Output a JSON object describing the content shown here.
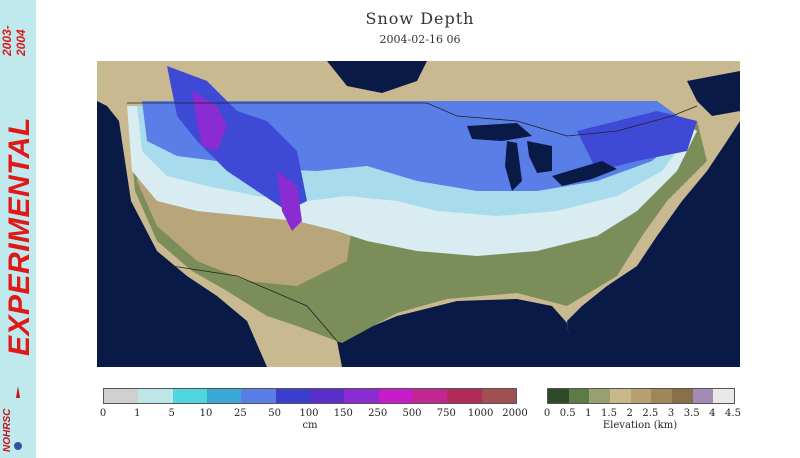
{
  "sidebar": {
    "label": "EXPERIMENTAL",
    "season_line1": "2003-",
    "season_line2": "2004",
    "logo_text": "NOHRSC"
  },
  "header": {
    "title": "Snow Depth",
    "subtitle": "2004-02-16 06"
  },
  "colors": {
    "water": "#0a1a46",
    "land_outside": "#c8b991",
    "bare_lowland": "#7b8e5a",
    "bare_upland": "#b8a57a",
    "snow_trace": "#d8ecf2",
    "snow_light": "#a8dced",
    "snow_medium": "#5a7ee8",
    "snow_deep": "#3e49d6",
    "snow_very_deep": "#8a2cd2"
  },
  "legend_snow": {
    "unit": "cm",
    "ticks": [
      "0",
      "1",
      "5",
      "10",
      "25",
      "50",
      "100",
      "150",
      "250",
      "500",
      "750",
      "1000",
      "2000"
    ],
    "colors": [
      "#d0d0d0",
      "#bfe6e6",
      "#4fd6df",
      "#3aa8d6",
      "#5a7ee8",
      "#3b3fd0",
      "#5a2ec8",
      "#8a2cd2",
      "#c81cc8",
      "#c02890",
      "#b02a5a",
      "#a05050"
    ]
  },
  "legend_elev": {
    "unit": "Elevation (km)",
    "ticks": [
      "0",
      "0.5",
      "1",
      "1.5",
      "2",
      "2.5",
      "3",
      "3.5",
      "4",
      "4.5"
    ],
    "colors": [
      "#2f4a2a",
      "#5e7a46",
      "#98a070",
      "#c8b98a",
      "#b8a070",
      "#a08558",
      "#8a7048",
      "#a48ab4",
      "#e8e8e8"
    ]
  }
}
